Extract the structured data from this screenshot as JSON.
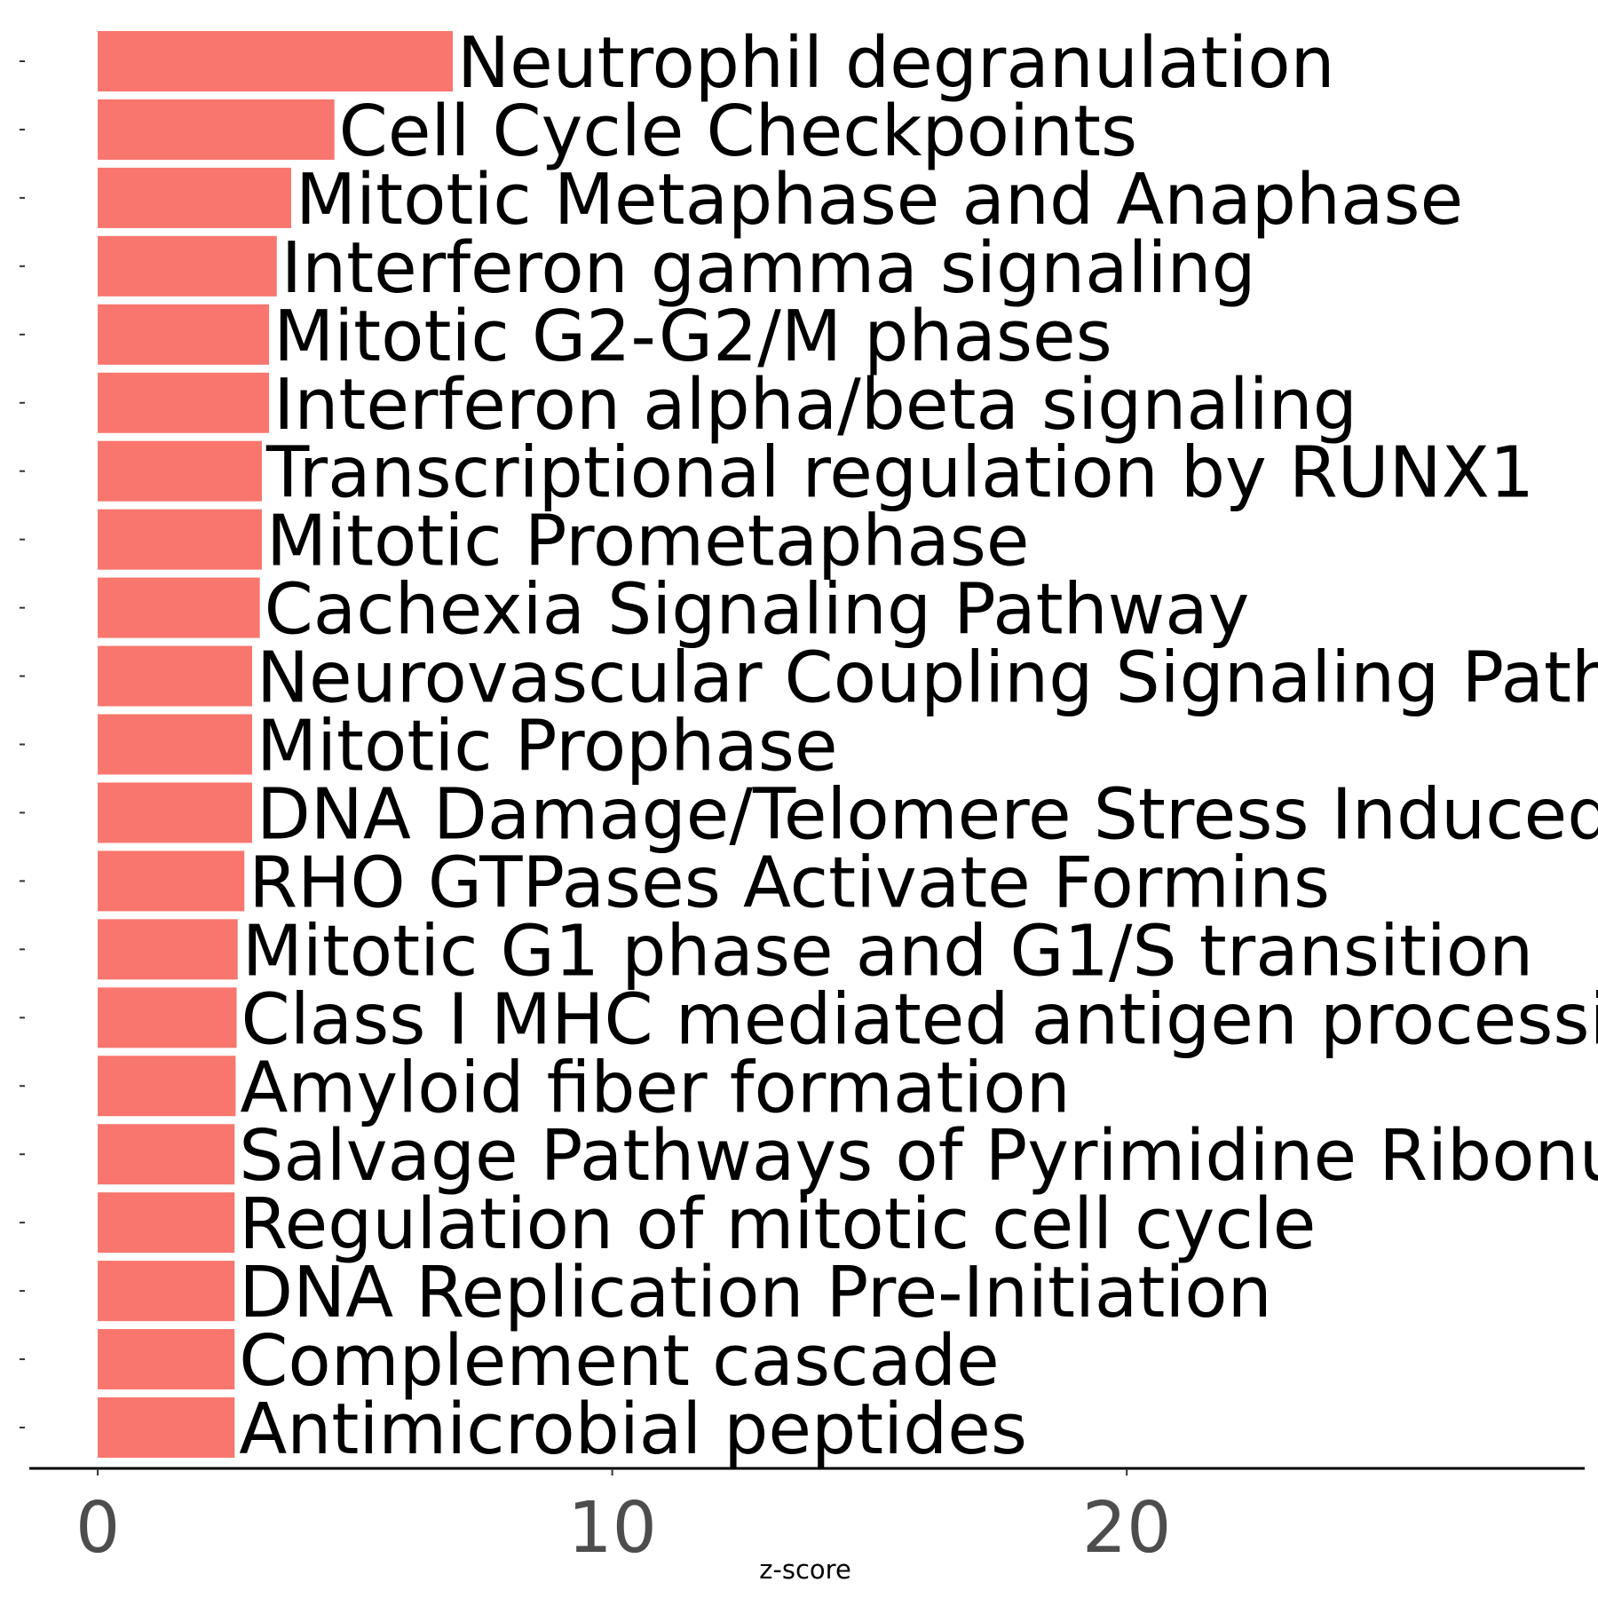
{
  "chart_data": {
    "type": "bar",
    "orientation": "horizontal",
    "xlabel": "z-score",
    "xlim": [
      -1.33,
      28.9
    ],
    "xticks": [
      0,
      10,
      20
    ],
    "grid": false,
    "bar_color": "#F8766D",
    "categories": [
      "Neutrophil degranulation",
      "Cell Cycle Checkpoints",
      "Mitotic Metaphase and Anaphase",
      "Interferon gamma signaling",
      "Mitotic G2-G2/M phases",
      "Interferon alpha/beta signaling",
      "Transcriptional regulation by RUNX1",
      "Mitotic Prometaphase",
      "Cachexia Signaling Pathway",
      "Neurovascular Coupling Signaling Path",
      "Mitotic Prophase",
      "DNA Damage/Telomere Stress Induced",
      "RHO GTPases Activate Formins",
      "Mitotic G1 phase and G1/S transition",
      "Class I MHC mediated antigen processi",
      "Amyloid fiber formation",
      "Salvage Pathways of Pyrimidine Ribonu",
      "Regulation of mitotic cell cycle",
      "DNA Replication Pre-Initiation",
      "Complement cascade",
      "Antimicrobial peptides"
    ],
    "values": [
      6.9,
      4.6,
      3.76,
      3.48,
      3.33,
      3.33,
      3.19,
      3.19,
      3.15,
      3.0,
      3.0,
      3.0,
      2.85,
      2.72,
      2.7,
      2.68,
      2.66,
      2.66,
      2.66,
      2.66,
      2.66
    ]
  }
}
